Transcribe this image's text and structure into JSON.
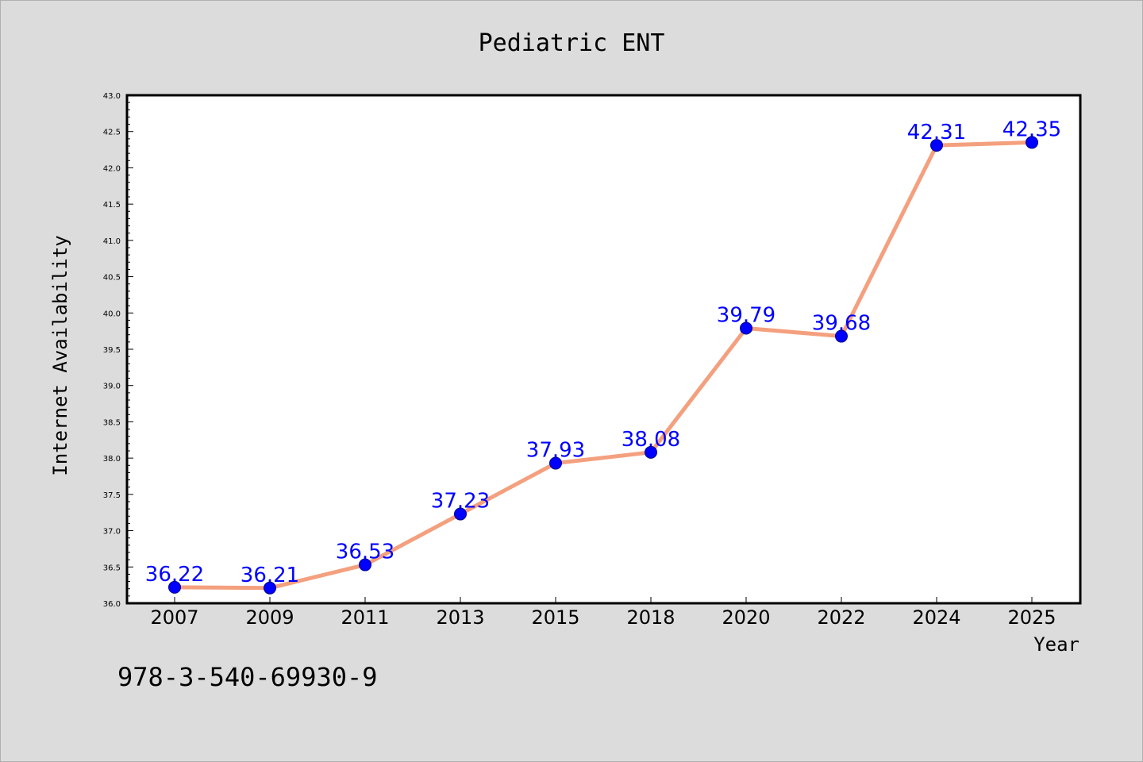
{
  "chart_data": {
    "type": "line",
    "title": "Pediatric ENT",
    "xlabel": "Year",
    "ylabel": "Internet Availability",
    "categories": [
      "2007",
      "2009",
      "2011",
      "2013",
      "2015",
      "2018",
      "2020",
      "2022",
      "2024",
      "2025"
    ],
    "series": [
      {
        "values": [
          36.22,
          36.21,
          36.53,
          37.23,
          37.93,
          38.08,
          39.79,
          39.68,
          42.31,
          42.35
        ]
      }
    ],
    "data_labels": [
      "36.22",
      "36.21",
      "36.53",
      "37.23",
      "37.93",
      "38.08",
      "39.79",
      "39.68",
      "42.31",
      "42.35"
    ],
    "ylim": [
      36.0,
      43.0
    ],
    "yticks": [
      "36.0",
      "36.5",
      "37.0",
      "37.5",
      "38.0",
      "38.5",
      "39.0",
      "39.5",
      "40.0",
      "40.5",
      "41.0",
      "41.5",
      "42.0",
      "42.5",
      "43.0"
    ],
    "grid": false,
    "legend": "none",
    "line_color": "#f4a07e",
    "marker_color": "#0000ff",
    "label_color": "#0000ff",
    "annotation": "978-3-540-69930-9"
  }
}
